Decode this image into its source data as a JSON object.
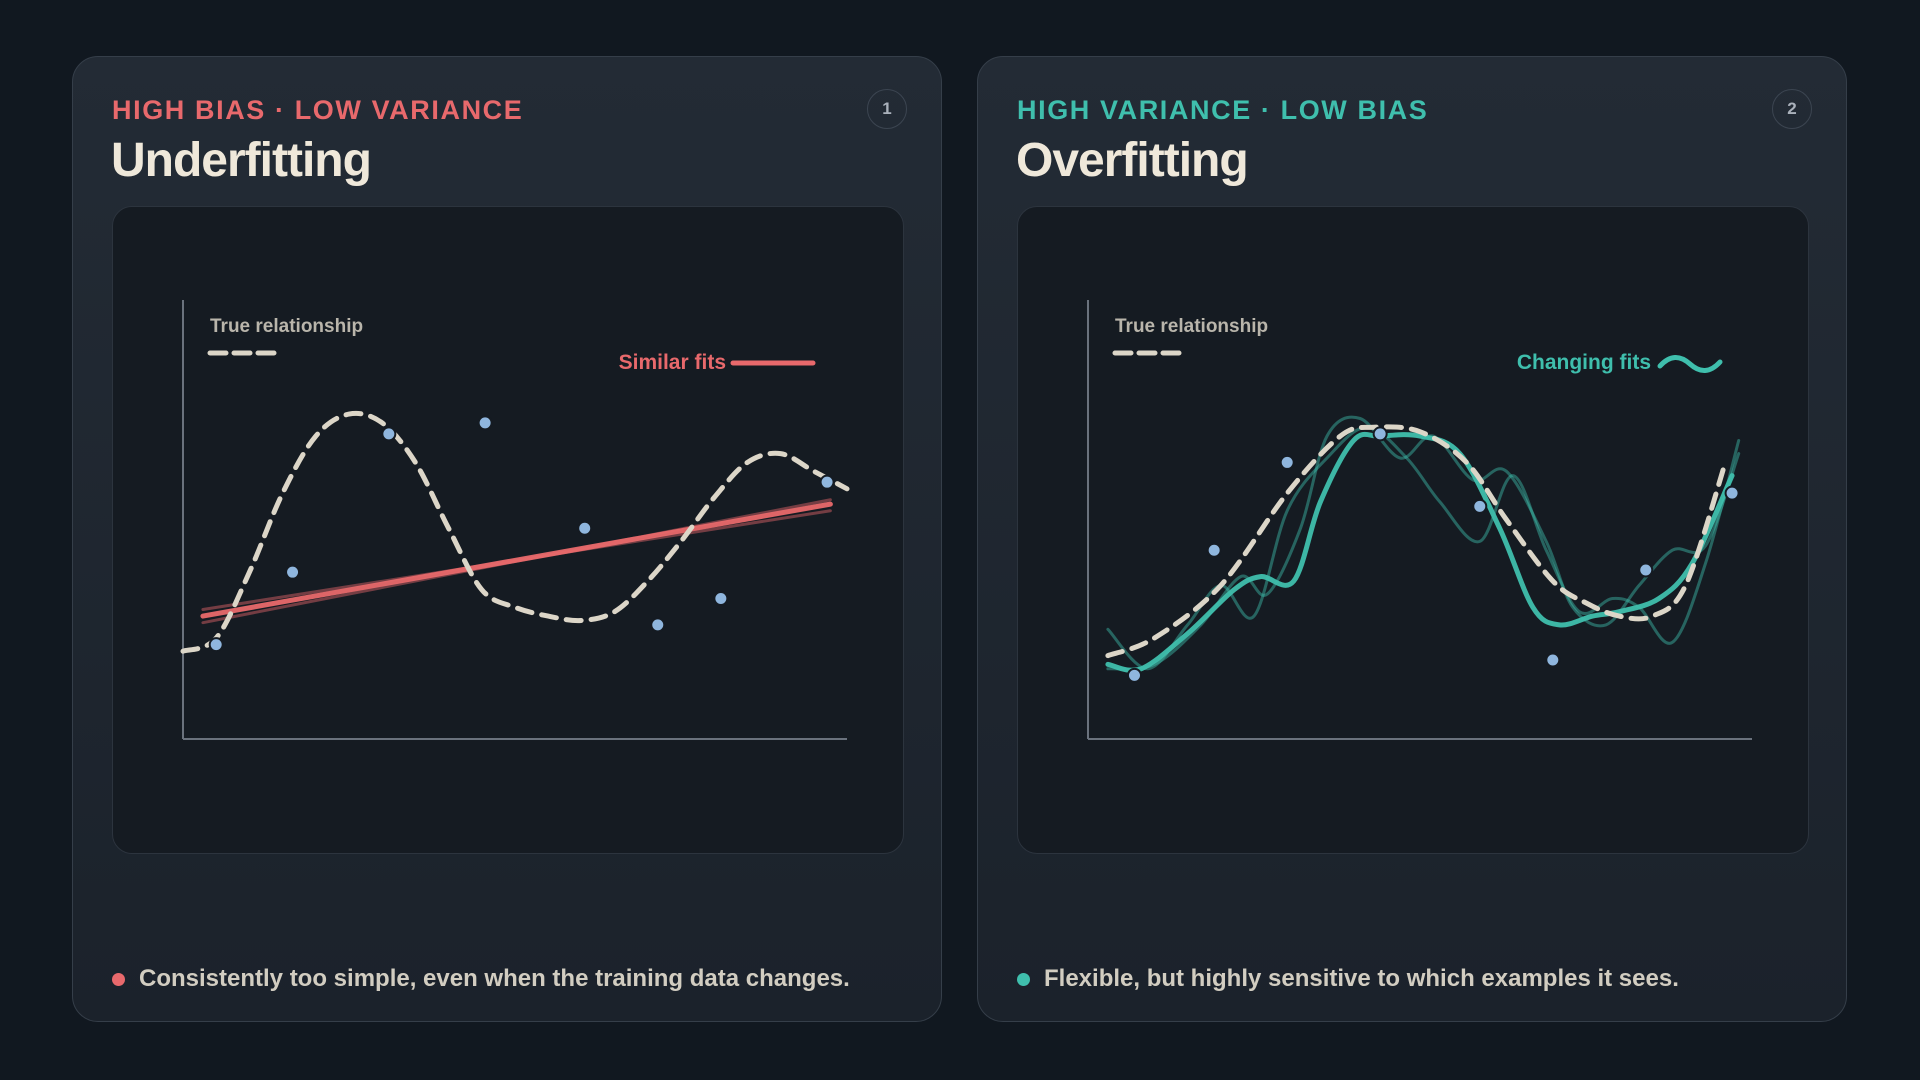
{
  "colors": {
    "background": "#111820",
    "underfit_accent": "#e8696c",
    "overfit_accent": "#3fbfad",
    "true_curve": "#dcd6c8",
    "points": "#8fb6de",
    "axes": "#6a727d",
    "title": "#efe8da"
  },
  "cards": [
    {
      "kicker": "HIGH BIAS · LOW VARIANCE",
      "title": "Underfitting",
      "badge": "1",
      "legend_true": "True relationship",
      "legend_fit": "Similar fits",
      "legend_fit_icon": "straight-line-icon",
      "note": "Consistently too simple, even when the training data changes."
    },
    {
      "kicker": "HIGH VARIANCE · LOW BIAS",
      "title": "Overfitting",
      "badge": "2",
      "legend_true": "True relationship",
      "legend_fit": "Changing fits",
      "legend_fit_icon": "wave-line-icon",
      "note": "Flexible, but highly sensitive to which examples it sees."
    }
  ],
  "chart_data": [
    {
      "type": "scatter",
      "title": "Underfitting",
      "xlabel": "",
      "ylabel": "",
      "xlim": [
        0,
        10
      ],
      "ylim": [
        0,
        10
      ],
      "true_relationship": {
        "x": [
          0,
          0.5,
          1,
          1.5,
          2,
          2.5,
          3,
          3.5,
          4,
          4.5,
          5,
          5.5,
          6,
          6.5,
          7,
          7.5,
          8,
          8.5,
          9,
          9.5,
          10
        ],
        "y": [
          2.0,
          2.3,
          3.8,
          5.6,
          6.9,
          7.4,
          7.2,
          6.3,
          4.8,
          3.4,
          3.0,
          2.8,
          2.7,
          2.9,
          3.6,
          4.5,
          5.5,
          6.3,
          6.5,
          6.1,
          5.7
        ]
      },
      "training_points": {
        "x": [
          0.5,
          1.65,
          3.1,
          4.55,
          6.05,
          7.15,
          8.1,
          9.7
        ],
        "y": [
          2.15,
          3.8,
          6.95,
          7.2,
          4.8,
          2.6,
          3.2,
          5.85
        ]
      },
      "fits": [
        {
          "x": [
            0.3,
            9.75
          ],
          "y": [
            2.8,
            5.35
          ]
        },
        {
          "x": [
            0.3,
            9.75
          ],
          "y": [
            2.95,
            5.2
          ]
        },
        {
          "x": [
            0.3,
            9.75
          ],
          "y": [
            2.65,
            5.45
          ]
        }
      ]
    },
    {
      "type": "scatter",
      "title": "Overfitting",
      "xlabel": "",
      "ylabel": "",
      "xlim": [
        0,
        10
      ],
      "ylim": [
        0,
        10
      ],
      "true_relationship": {
        "x": [
          0.3,
          1,
          2,
          3,
          3.8,
          4.3,
          5,
          5.7,
          6.3,
          7,
          7.5,
          8,
          8.5,
          9,
          9.6
        ],
        "y": [
          1.9,
          2.3,
          3.5,
          5.6,
          6.9,
          7.1,
          7.0,
          6.3,
          5.0,
          3.6,
          3.1,
          2.8,
          2.8,
          3.5,
          6.3
        ]
      },
      "training_points": {
        "x": [
          0.7,
          1.9,
          3.0,
          4.4,
          5.9,
          7.0,
          8.4,
          9.7
        ],
        "y": [
          1.45,
          4.3,
          6.3,
          6.95,
          5.3,
          1.8,
          3.85,
          5.6
        ]
      },
      "fits": [
        {
          "x": [
            0.3,
            0.8,
            1.5,
            2.2,
            2.6,
            3.1,
            3.5,
            4.0,
            4.4,
            5.0,
            5.6,
            6.2,
            6.7,
            7.1,
            7.6,
            8.0,
            8.6,
            9.1,
            9.7
          ],
          "y": [
            1.7,
            1.6,
            2.4,
            3.4,
            3.7,
            3.6,
            5.4,
            6.8,
            6.9,
            6.9,
            6.5,
            4.8,
            3.0,
            2.6,
            2.8,
            2.9,
            3.2,
            4.0,
            6.0
          ]
        },
        {
          "x": [
            0.3,
            1.0,
            1.7,
            2.3,
            2.7,
            3.2,
            3.6,
            4.1,
            4.7,
            5.2,
            5.8,
            6.3,
            6.9,
            7.3,
            7.8,
            8.3,
            8.8,
            9.3,
            9.8
          ],
          "y": [
            1.6,
            1.7,
            2.6,
            3.7,
            3.3,
            4.8,
            6.9,
            7.3,
            6.4,
            6.9,
            5.9,
            6.1,
            4.5,
            3.0,
            2.6,
            3.5,
            4.3,
            4.4,
            6.5
          ]
        },
        {
          "x": [
            0.3,
            0.9,
            1.5,
            2.0,
            2.5,
            3.0,
            3.6,
            4.2,
            4.8,
            5.3,
            5.9,
            6.4,
            6.9,
            7.4,
            7.9,
            8.3,
            8.8,
            9.3,
            9.8
          ],
          "y": [
            2.5,
            1.6,
            2.6,
            3.5,
            2.8,
            5.2,
            6.4,
            7.1,
            6.4,
            5.4,
            4.5,
            6.0,
            4.3,
            2.9,
            3.2,
            3.0,
            2.2,
            4.0,
            6.8
          ]
        }
      ]
    }
  ]
}
